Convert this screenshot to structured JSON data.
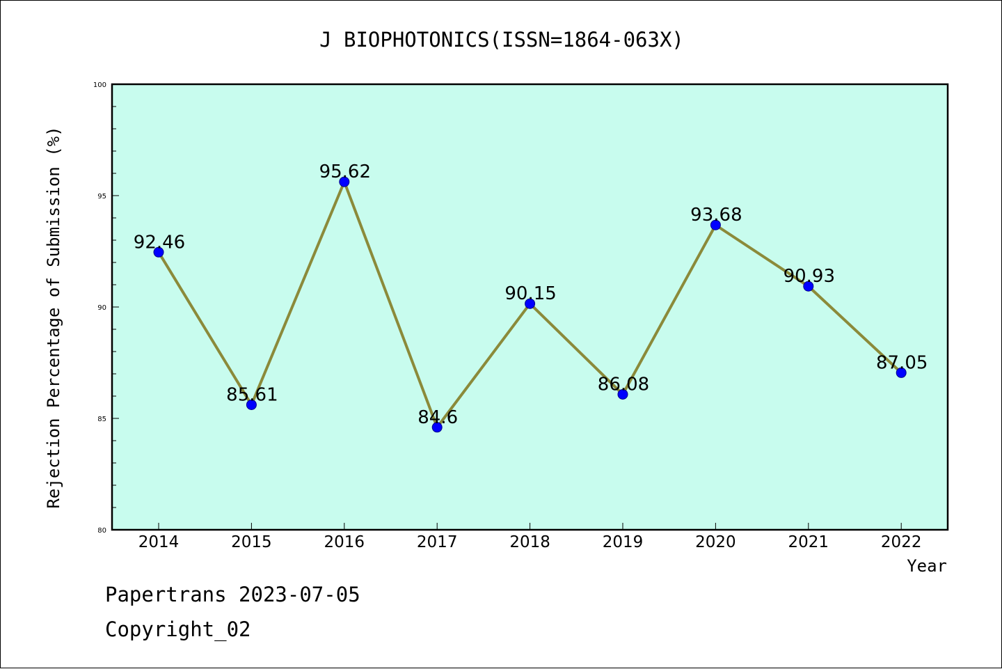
{
  "chart_data": {
    "type": "line",
    "title": "J BIOPHOTONICS(ISSN=1864-063X)",
    "xlabel": "Year",
    "ylabel": "Rejection Percentage of Submission (%)",
    "categories": [
      "2014",
      "2015",
      "2016",
      "2017",
      "2018",
      "2019",
      "2020",
      "2021",
      "2022"
    ],
    "series": [
      {
        "values": [
          92.46,
          85.61,
          95.62,
          84.6,
          90.15,
          86.08,
          93.68,
          90.93,
          87.05
        ],
        "data_labels": [
          "92.46",
          "85.61",
          "95.62",
          "84.6",
          "90.15",
          "86.08",
          "93.68",
          "90.93",
          "87.05"
        ],
        "line_color": "#8b8a3a",
        "marker_color": "#0000ff"
      }
    ],
    "ylim": [
      80,
      100
    ],
    "yticks": [
      "80",
      "85",
      "90",
      "95",
      "100"
    ],
    "plot_background": "#c8fcee",
    "grid": false,
    "legend": "none"
  },
  "footer": {
    "line1": "Papertrans 2023-07-05",
    "line2": "Copyright_02"
  }
}
